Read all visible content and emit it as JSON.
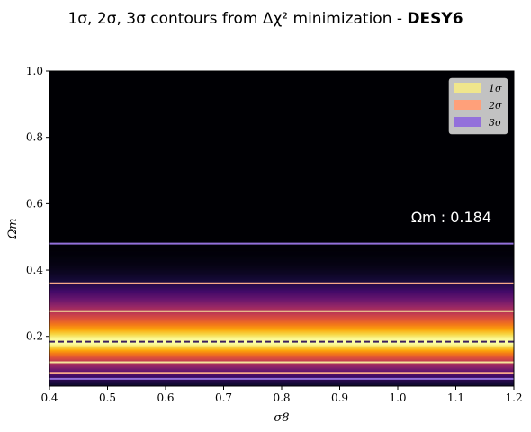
{
  "chart_data": {
    "type": "heatmap",
    "title_prefix": "1σ, 2σ, 3σ contours from Δχ² minimization - ",
    "title_bold": "DESY6",
    "xlabel": "σ8",
    "ylabel": "Ωm",
    "xlim": [
      0.4,
      1.2
    ],
    "ylim": [
      0.05,
      1.0
    ],
    "xticks": [
      "0.4",
      "0.5",
      "0.6",
      "0.7",
      "0.8",
      "0.9",
      "1.0",
      "1.1",
      "1.2"
    ],
    "yticks": [
      "0.2",
      "0.4",
      "0.6",
      "0.8",
      "1.0"
    ],
    "best_fit": {
      "label": "Ωm : 0.184",
      "value": 0.184
    },
    "contours": [
      {
        "level": "1σ",
        "omega_m": [
          0.122,
          0.276
        ],
        "color": "#f5e49a"
      },
      {
        "level": "2σ",
        "omega_m": [
          0.09,
          0.36
        ],
        "color": "#f7a889"
      },
      {
        "level": "3σ",
        "omega_m": [
          0.072,
          0.48
        ],
        "color": "#9370db"
      }
    ],
    "legend": [
      {
        "label": "1σ",
        "color": "#f0e68c"
      },
      {
        "label": "2σ",
        "color": "#ffa07a"
      },
      {
        "label": "3σ",
        "color": "#9370db"
      }
    ],
    "legend_position": "top-right",
    "colormap": "inferno",
    "grid": false
  }
}
